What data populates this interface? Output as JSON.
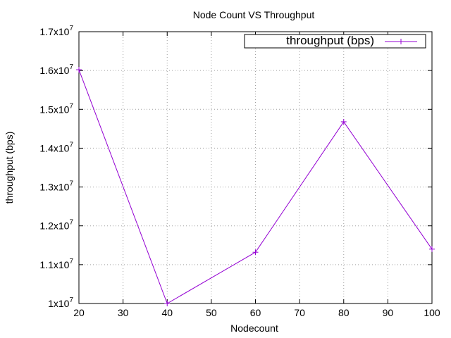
{
  "chart_data": {
    "type": "line",
    "title": "Node Count VS Throughput",
    "xlabel": "Nodecount",
    "ylabel": "throughput (bps)",
    "xlim": [
      20,
      100
    ],
    "ylim": [
      10000000,
      17000000
    ],
    "x_ticks": [
      {
        "value": 20,
        "label": "20"
      },
      {
        "value": 30,
        "label": "30"
      },
      {
        "value": 40,
        "label": "40"
      },
      {
        "value": 50,
        "label": "50"
      },
      {
        "value": 60,
        "label": "60"
      },
      {
        "value": 70,
        "label": "70"
      },
      {
        "value": 80,
        "label": "80"
      },
      {
        "value": 90,
        "label": "90"
      },
      {
        "value": 100,
        "label": "100"
      }
    ],
    "y_ticks": [
      {
        "value": 10000000,
        "mantissa": "1",
        "exponent": "7"
      },
      {
        "value": 11000000,
        "mantissa": "1.1",
        "exponent": "7"
      },
      {
        "value": 12000000,
        "mantissa": "1.2",
        "exponent": "7"
      },
      {
        "value": 13000000,
        "mantissa": "1.3",
        "exponent": "7"
      },
      {
        "value": 14000000,
        "mantissa": "1.4",
        "exponent": "7"
      },
      {
        "value": 15000000,
        "mantissa": "1.5",
        "exponent": "7"
      },
      {
        "value": 16000000,
        "mantissa": "1.6",
        "exponent": "7"
      },
      {
        "value": 17000000,
        "mantissa": "1.7",
        "exponent": "7"
      }
    ],
    "grid": true,
    "legend_position": "top-right",
    "series": [
      {
        "name": "throughput (bps)",
        "color": "#9400d3",
        "marker": "plus",
        "points": [
          {
            "x": 20,
            "y": 16020000
          },
          {
            "x": 40,
            "y": 10000000
          },
          {
            "x": 60,
            "y": 11320000
          },
          {
            "x": 80,
            "y": 14680000
          },
          {
            "x": 100,
            "y": 11400000
          }
        ]
      }
    ]
  }
}
